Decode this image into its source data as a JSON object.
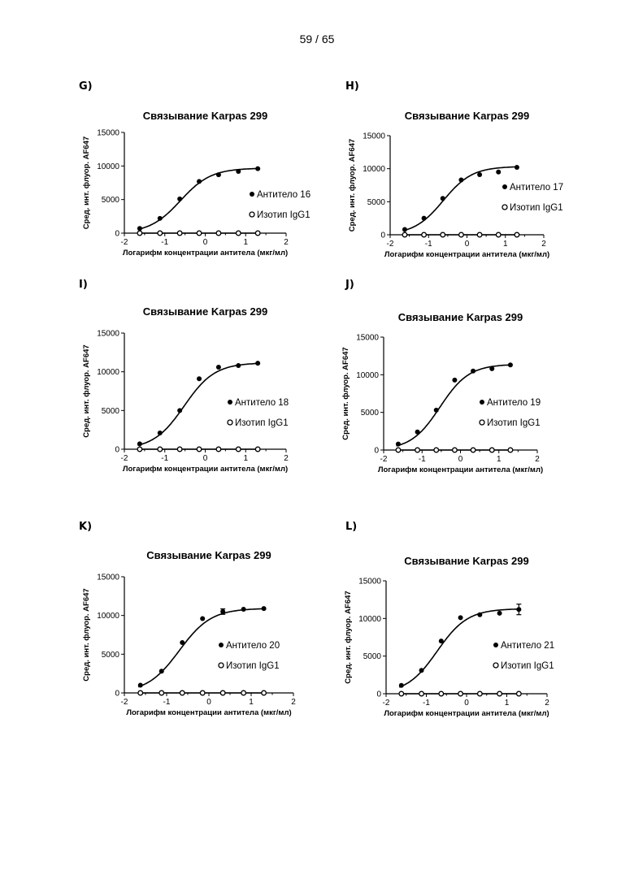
{
  "page": {
    "number_label": "59 / 65"
  },
  "chart_data": [
    {
      "panel": "G)",
      "type": "scatter",
      "title": "Связывание Karpas 299",
      "xlabel": "Логарифм концентрации антитела (мкг/мл)",
      "ylabel": "Сред. инт. флуор. AF647",
      "xlim": [
        -2,
        2
      ],
      "ylim": [
        0,
        15000
      ],
      "xticks": [
        "-2",
        "-1",
        "0",
        "1",
        "2"
      ],
      "yticks": [
        "0",
        "5000",
        "10000",
        "15000"
      ],
      "legend": [
        {
          "name": "Антитело",
          "number": "16",
          "marker": "filled-circle"
        },
        {
          "name": "Изотип",
          "number": "IgG1",
          "marker": "open-circle"
        }
      ],
      "series": [
        {
          "name": "Антитело 16",
          "marker": "filled",
          "fit_curve": true,
          "x": [
            -1.62,
            -1.12,
            -0.63,
            -0.15,
            0.33,
            0.82,
            1.3
          ],
          "y": [
            700,
            2200,
            5100,
            7700,
            8700,
            9200,
            9600
          ]
        },
        {
          "name": "Изотип IgG1",
          "marker": "open",
          "fit_curve": true,
          "x": [
            -1.62,
            -1.12,
            -0.63,
            -0.15,
            0.33,
            0.82,
            1.3
          ],
          "y": [
            0,
            0,
            0,
            0,
            0,
            0,
            0
          ]
        }
      ]
    },
    {
      "panel": "H)",
      "type": "scatter",
      "title": "Связывание Karpas 299",
      "xlabel": "Логарифм концентрации антитела (мкг/мл)",
      "ylabel": "Сред. инт. флуор. AF647",
      "xlim": [
        -2,
        2
      ],
      "ylim": [
        0,
        15000
      ],
      "xticks": [
        "-2",
        "-1",
        "0",
        "1",
        "2"
      ],
      "yticks": [
        "0",
        "5000",
        "10000",
        "15000"
      ],
      "legend": [
        {
          "name": "Антитело",
          "number": "17",
          "marker": "filled-circle"
        },
        {
          "name": "Изотип",
          "number": "IgG1",
          "marker": "open-circle"
        }
      ],
      "series": [
        {
          "name": "Антитело 17",
          "marker": "filled",
          "fit_curve": true,
          "x": [
            -1.62,
            -1.12,
            -0.63,
            -0.15,
            0.33,
            0.82,
            1.3
          ],
          "y": [
            800,
            2500,
            5500,
            8300,
            9100,
            9500,
            10200
          ]
        },
        {
          "name": "Изотип IgG1",
          "marker": "open",
          "fit_curve": true,
          "x": [
            -1.62,
            -1.12,
            -0.63,
            -0.15,
            0.33,
            0.82,
            1.3
          ],
          "y": [
            0,
            0,
            0,
            0,
            0,
            0,
            0
          ]
        }
      ]
    },
    {
      "panel": "I)",
      "type": "scatter",
      "title": "Связывание Karpas 299",
      "xlabel": "Логарифм концентрации антитела (мкг/мл)",
      "ylabel": "Сред. инт. флуор. AF647",
      "xlim": [
        -2,
        2
      ],
      "ylim": [
        0,
        15000
      ],
      "xticks": [
        "-2",
        "-1",
        "0",
        "1",
        "2"
      ],
      "yticks": [
        "0",
        "5000",
        "10000",
        "15000"
      ],
      "legend": [
        {
          "name": "Антитело",
          "number": "18",
          "marker": "filled-circle"
        },
        {
          "name": "Изотип",
          "number": "IgG1",
          "marker": "open-circle"
        }
      ],
      "series": [
        {
          "name": "Антитело 18",
          "marker": "filled",
          "fit_curve": true,
          "x": [
            -1.62,
            -1.12,
            -0.63,
            -0.15,
            0.33,
            0.82,
            1.3
          ],
          "y": [
            700,
            2100,
            5000,
            9100,
            10600,
            10800,
            11100
          ]
        },
        {
          "name": "Изотип IgG1",
          "marker": "open",
          "fit_curve": true,
          "x": [
            -1.62,
            -1.12,
            -0.63,
            -0.15,
            0.33,
            0.82,
            1.3
          ],
          "y": [
            0,
            0,
            0,
            0,
            0,
            0,
            0
          ]
        }
      ]
    },
    {
      "panel": "J)",
      "type": "scatter",
      "title": "Связывание Karpas 299",
      "xlabel": "Логарифм концентрации антитела (мкг/мл)",
      "ylabel": "Сред. инт. флуор. AF647",
      "xlim": [
        -2,
        2
      ],
      "ylim": [
        0,
        15000
      ],
      "xticks": [
        "-2",
        "-1",
        "0",
        "1",
        "2"
      ],
      "yticks": [
        "0",
        "5000",
        "10000",
        "15000"
      ],
      "legend": [
        {
          "name": "Антитело",
          "number": "19",
          "marker": "filled-circle"
        },
        {
          "name": "Изотип",
          "number": "IgG1",
          "marker": "open-circle"
        }
      ],
      "series": [
        {
          "name": "Антитело 19",
          "marker": "filled",
          "fit_curve": true,
          "x": [
            -1.62,
            -1.12,
            -0.63,
            -0.15,
            0.33,
            0.82,
            1.3
          ],
          "y": [
            800,
            2400,
            5300,
            9300,
            10500,
            10800,
            11300
          ]
        },
        {
          "name": "Изотип IgG1",
          "marker": "open",
          "fit_curve": true,
          "x": [
            -1.62,
            -1.12,
            -0.63,
            -0.15,
            0.33,
            0.82,
            1.3
          ],
          "y": [
            0,
            0,
            0,
            0,
            0,
            0,
            0
          ]
        }
      ]
    },
    {
      "panel": "K)",
      "type": "scatter",
      "title": "Связывание Karpas 299",
      "xlabel": "Логарифм концентрации антитела (мкг/мл)",
      "ylabel": "Сред. инт. флуор. AF647",
      "xlim": [
        -2,
        2
      ],
      "ylim": [
        0,
        15000
      ],
      "xticks": [
        "-2",
        "-1",
        "0",
        "1",
        "2"
      ],
      "yticks": [
        "0",
        "5000",
        "10000",
        "15000"
      ],
      "legend": [
        {
          "name": "Антитело",
          "number": "20",
          "marker": "filled-circle"
        },
        {
          "name": "Изотип",
          "number": "IgG1",
          "marker": "open-circle"
        }
      ],
      "series": [
        {
          "name": "Антитело 20",
          "marker": "filled",
          "fit_curve": true,
          "x": [
            -1.62,
            -1.12,
            -0.63,
            -0.15,
            0.33,
            0.82,
            1.3
          ],
          "y": [
            1000,
            2800,
            6500,
            9600,
            10500,
            10800,
            10900
          ],
          "error": [
            0,
            0,
            0,
            0,
            350,
            0,
            0
          ]
        },
        {
          "name": "Изотип IgG1",
          "marker": "open",
          "fit_curve": true,
          "x": [
            -1.62,
            -1.12,
            -0.63,
            -0.15,
            0.33,
            0.82,
            1.3
          ],
          "y": [
            0,
            0,
            0,
            0,
            0,
            0,
            0
          ]
        }
      ]
    },
    {
      "panel": "L)",
      "type": "scatter",
      "title": "Связывание Karpas 299",
      "xlabel": "Логарифм концентрации антитела (мкг/мл)",
      "ylabel": "Сред. инт. флуор. AF647",
      "xlim": [
        -2,
        2
      ],
      "ylim": [
        0,
        15000
      ],
      "xticks": [
        "-2",
        "-1",
        "0",
        "1",
        "2"
      ],
      "yticks": [
        "0",
        "5000",
        "10000",
        "15000"
      ],
      "legend": [
        {
          "name": "Антитело",
          "number": "21",
          "marker": "filled-circle"
        },
        {
          "name": "Изотип",
          "number": "IgG1",
          "marker": "open-circle"
        }
      ],
      "series": [
        {
          "name": "Антитело 21",
          "marker": "filled",
          "fit_curve": true,
          "x": [
            -1.62,
            -1.12,
            -0.63,
            -0.15,
            0.33,
            0.82,
            1.3
          ],
          "y": [
            1100,
            3100,
            7000,
            10100,
            10500,
            10700,
            11200
          ],
          "error": [
            0,
            0,
            0,
            0,
            0,
            0,
            700
          ]
        },
        {
          "name": "Изотип IgG1",
          "marker": "open",
          "fit_curve": true,
          "x": [
            -1.62,
            -1.12,
            -0.63,
            -0.15,
            0.33,
            0.82,
            1.3
          ],
          "y": [
            0,
            0,
            0,
            0,
            0,
            0,
            0
          ]
        }
      ]
    }
  ]
}
